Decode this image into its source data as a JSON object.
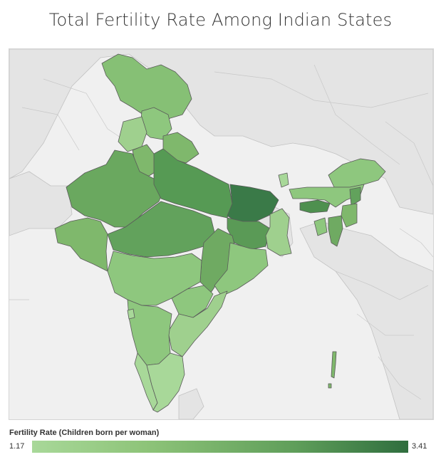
{
  "title": "Total Fertility Rate Among Indian States",
  "legend": {
    "title": "Fertility Rate (Children born per woman)",
    "min_label": "1.17",
    "max_label": "3.41",
    "min_color": "#a8d899",
    "max_color": "#2f6e3e"
  },
  "colors": {
    "land": "#e6e6e6",
    "background": "#f0f0f0",
    "border": "#bcbcbc",
    "state_border": "#5a5a5a"
  }
}
